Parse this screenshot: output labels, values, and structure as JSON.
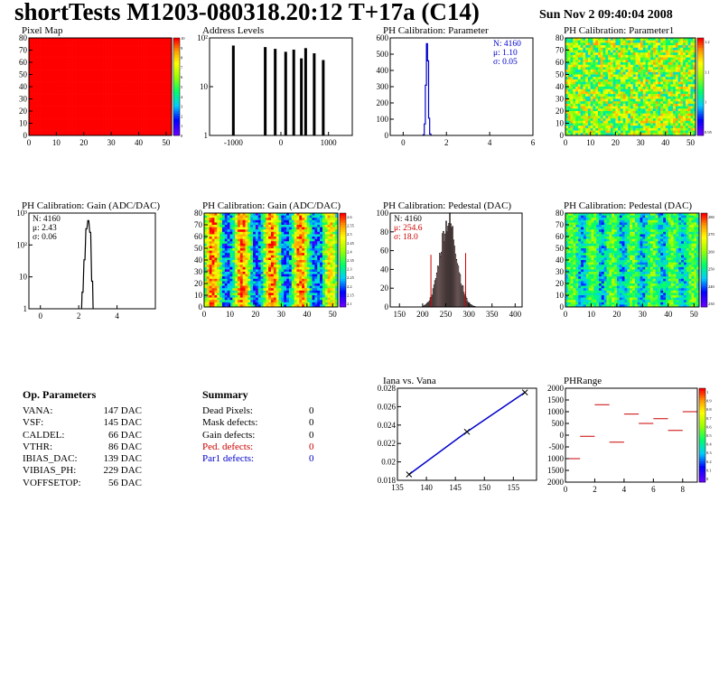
{
  "page": {
    "title": "shortTests M1203-080318.20:12 T+17a (C14)",
    "date": "Sun Nov  2 09:40:04 2008"
  },
  "colors": {
    "axis": "#000000",
    "fit": "#0000cc",
    "ped": "#cc0000",
    "hist": "#000000"
  },
  "op_params": {
    "header": "Op. Parameters",
    "rows": [
      {
        "name": "VANA:",
        "value": "147 DAC"
      },
      {
        "name": "VSF:",
        "value": "145 DAC"
      },
      {
        "name": "CALDEL:",
        "value": "66 DAC"
      },
      {
        "name": "VTHR:",
        "value": "86 DAC"
      },
      {
        "name": "IBIAS_DAC:",
        "value": "139 DAC"
      },
      {
        "name": "VIBIAS_PH:",
        "value": "229 DAC"
      },
      {
        "name": "VOFFSETOP:",
        "value": "56 DAC"
      }
    ]
  },
  "summary": {
    "header": "Summary",
    "rows": [
      {
        "name": "Dead Pixels:",
        "value": "0",
        "color": "#000000"
      },
      {
        "name": "Mask defects:",
        "value": "0",
        "color": "#000000"
      },
      {
        "name": "Gain defects:",
        "value": "0",
        "color": "#000000"
      },
      {
        "name": "Ped. defects:",
        "value": "0",
        "color": "#cc0000"
      },
      {
        "name": "Par1 defects:",
        "value": "0",
        "color": "#0000cc"
      }
    ]
  },
  "chart_data": [
    {
      "id": "pixel-map",
      "type": "heatmap",
      "title": "Pixel Map",
      "xlim": [
        0,
        52
      ],
      "ylim": [
        0,
        80
      ],
      "xticks": [
        "0",
        "10",
        "20",
        "30",
        "40",
        "50"
      ],
      "yticks": [
        "0",
        "10",
        "20",
        "30",
        "40",
        "50",
        "60",
        "70",
        "80"
      ],
      "zlim": [
        0,
        10
      ],
      "zticks": [
        "0",
        "1",
        "2",
        "3",
        "4",
        "5",
        "6",
        "7",
        "8",
        "9",
        "10"
      ],
      "fill": "uniform",
      "z_value": 10
    },
    {
      "id": "address-levels",
      "type": "bar",
      "title": "Address Levels",
      "xlim": [
        -1500,
        1500
      ],
      "ylim": [
        0.5,
        800
      ],
      "ylog": true,
      "xticks": [
        "-1000",
        "0",
        "1000"
      ],
      "yticks": [
        "1",
        "10",
        "10²"
      ],
      "x": [
        -1000,
        -330,
        -120,
        100,
        270,
        430,
        520,
        700,
        890
      ],
      "values": [
        450,
        400,
        350,
        280,
        330,
        170,
        370,
        250,
        150
      ]
    },
    {
      "id": "ph-cal-parameter",
      "type": "bar",
      "title": "PH Calibration: Parameter",
      "xlim": [
        -0.6,
        6
      ],
      "ylim": [
        0,
        680
      ],
      "xticks": [
        "0",
        "2",
        "4",
        "6"
      ],
      "yticks": [
        "0",
        "100",
        "200",
        "300",
        "400",
        "500",
        "600"
      ],
      "x": [
        0.95,
        1.0,
        1.05,
        1.1,
        1.15,
        1.2,
        1.25
      ],
      "values": [
        5,
        80,
        350,
        640,
        520,
        120,
        10
      ],
      "stats": [
        "N: 4160",
        "μ: 1.10",
        "σ: 0.05"
      ]
    },
    {
      "id": "ph-cal-parameter1",
      "type": "heatmap",
      "title": "PH Calibration: Parameter1",
      "xlim": [
        0,
        52
      ],
      "ylim": [
        0,
        80
      ],
      "xticks": [
        "0",
        "10",
        "20",
        "30",
        "40",
        "50"
      ],
      "yticks": [
        "0",
        "10",
        "20",
        "30",
        "40",
        "50",
        "60",
        "70",
        "80"
      ],
      "zlim": [
        0.9,
        1.25
      ],
      "zticks": [
        "1.2",
        "1.1",
        "1",
        "0.95"
      ],
      "fill": "noise"
    },
    {
      "id": "ph-cal-gain-hist",
      "type": "bar",
      "title": "PH Calibration: Gain (ADC/DAC)",
      "xlim": [
        -0.6,
        6
      ],
      "ylim": [
        0.5,
        1500
      ],
      "ylog": true,
      "xticks": [
        "0",
        "2",
        "4"
      ],
      "yticks": [
        "1",
        "10",
        "10²",
        "10³"
      ],
      "x": [
        2.2,
        2.3,
        2.4,
        2.5,
        2.6,
        2.7
      ],
      "values": [
        2,
        30,
        400,
        800,
        300,
        5
      ],
      "stats": [
        "N: 4160",
        "μ: 2.43",
        "σ: 0.06"
      ]
    },
    {
      "id": "ph-cal-gain-map",
      "type": "heatmap",
      "title": "PH Calibration: Gain (ADC/DAC)",
      "xlim": [
        0,
        52
      ],
      "ylim": [
        0,
        80
      ],
      "xticks": [
        "0",
        "10",
        "20",
        "30",
        "40",
        "50"
      ],
      "yticks": [
        "0",
        "10",
        "20",
        "30",
        "40",
        "50",
        "60",
        "70",
        "80"
      ],
      "zlim": [
        2.1,
        2.6
      ],
      "zticks": [
        "2.6",
        "2.55",
        "2.5",
        "2.45",
        "2.4",
        "2.35",
        "2.3",
        "2.25",
        "2.2",
        "2.15",
        "2.1"
      ],
      "fill": "stripes"
    },
    {
      "id": "ph-cal-pedestal-hist",
      "type": "bar",
      "title": "PH Calibration: Pedestal (DAC)",
      "xlim": [
        130,
        415
      ],
      "ylim": [
        0,
        108
      ],
      "xticks": [
        "150",
        "200",
        "250",
        "300",
        "350",
        "400"
      ],
      "yticks": [
        "0",
        "20",
        "40",
        "60",
        "80",
        "100"
      ],
      "mean": 254.6,
      "sigma": 18.0,
      "peak": 98,
      "stats": [
        "N: 4160",
        "μ: 254.6",
        "σ: 18.0"
      ]
    },
    {
      "id": "ph-cal-pedestal-map",
      "type": "heatmap",
      "title": "PH Calibration: Pedestal (DAC)",
      "xlim": [
        0,
        52
      ],
      "ylim": [
        0,
        80
      ],
      "xticks": [
        "0",
        "10",
        "20",
        "30",
        "40",
        "50"
      ],
      "yticks": [
        "0",
        "10",
        "20",
        "30",
        "40",
        "50",
        "60",
        "70",
        "80"
      ],
      "zlim": [
        200,
        300
      ],
      "zticks": [
        "280",
        "270",
        "260",
        "250",
        "240",
        "230"
      ],
      "fill": "pedestal"
    },
    {
      "id": "iana-vs-vana",
      "type": "line",
      "title": "Iana vs. Vana",
      "xlim": [
        135,
        159
      ],
      "ylim": [
        0.018,
        0.029
      ],
      "xticks": [
        "135",
        "140",
        "145",
        "150",
        "155"
      ],
      "yticks": [
        "0.018",
        "0.02",
        "0.022",
        "0.024",
        "0.026",
        "0.028"
      ],
      "x": [
        137,
        147,
        157
      ],
      "values": [
        0.0187,
        0.0238,
        0.0285
      ]
    },
    {
      "id": "ph-range",
      "type": "bar",
      "title": "PHRange",
      "xlim": [
        0,
        9
      ],
      "ylim": [
        -2000,
        2000
      ],
      "xticks": [
        "0",
        "2",
        "4",
        "6",
        "8"
      ],
      "yticks": [
        "2000",
        "1500",
        "1000",
        "500",
        "0",
        "-500",
        "1000",
        "1500",
        "2000"
      ],
      "x": [
        0,
        1,
        2,
        3,
        4,
        5,
        6,
        7,
        8
      ],
      "values": [
        -1000,
        -50,
        1300,
        -300,
        900,
        500,
        700,
        200,
        1000
      ],
      "zticks": [
        "1",
        "0.9",
        "0.8",
        "0.7",
        "0.6",
        "0.5",
        "0.4",
        "0.3",
        "0.2",
        "0.1",
        "0"
      ]
    }
  ]
}
